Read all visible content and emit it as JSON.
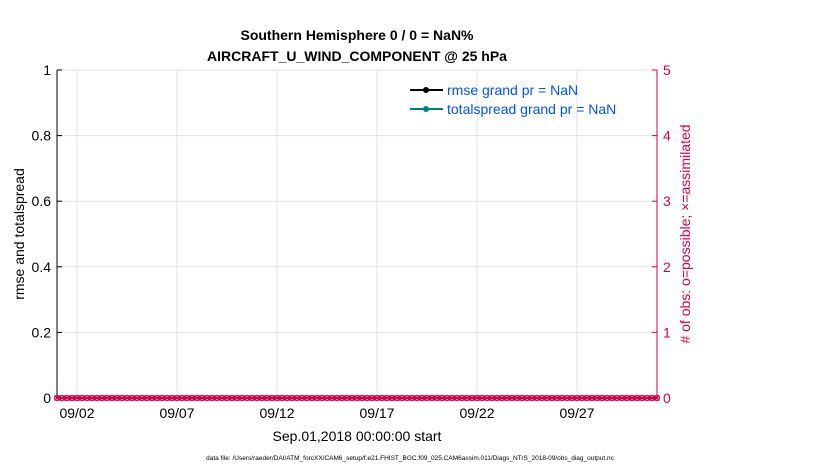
{
  "chart_data": {
    "type": "line",
    "title": [
      "Southern Hemisphere 0 / 0 = NaN%",
      "AIRCRAFT_U_WIND_COMPONENT @ 25 hPa"
    ],
    "xlabel": "Sep.01,2018 00:00:00 start",
    "ylabel": "rmse and totalspread",
    "y2label": "# of obs: o=possible; ×=assimilated",
    "xlim_days": [
      1,
      31
    ],
    "xticks": [
      {
        "day": 2,
        "label": "09/02"
      },
      {
        "day": 7,
        "label": "09/07"
      },
      {
        "day": 12,
        "label": "09/12"
      },
      {
        "day": 17,
        "label": "09/17"
      },
      {
        "day": 22,
        "label": "09/22"
      },
      {
        "day": 27,
        "label": "09/27"
      }
    ],
    "ylim": [
      0,
      1
    ],
    "yticks": [
      "0",
      "0.2",
      "0.4",
      "0.6",
      "0.8",
      "1"
    ],
    "y2lim": [
      0,
      5
    ],
    "y2ticks": [
      "0",
      "1",
      "2",
      "3",
      "4",
      "5"
    ],
    "grid": true,
    "legend_placement": "top-right",
    "series": [
      {
        "name": "rmse grand pr = NaN",
        "color": "#000000",
        "values": []
      },
      {
        "name": "totalspread grand pr = NaN",
        "color": "#008080",
        "values": []
      }
    ],
    "obs_counts": {
      "color": "#d6004f",
      "interval_hours": 6,
      "possible": 0,
      "assimilated": 0
    }
  },
  "footer": "data file: /Users/raeder/DAI/ATM_forcXX/CAM6_setup/f.e21.FHIST_BGC.f09_025.CAM6assim.011/Diags_NTrS_2018-09/obs_diag_output.nc"
}
